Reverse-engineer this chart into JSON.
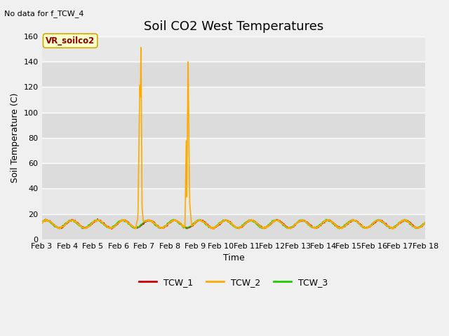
{
  "title": "Soil CO2 West Temperatures",
  "no_data_text": "No data for f_TCW_4",
  "ylabel": "Soil Temperature (C)",
  "xlabel": "Time",
  "annotation_text": "VR_soilco2",
  "ylim": [
    0,
    160
  ],
  "yticks": [
    0,
    20,
    40,
    60,
    80,
    100,
    120,
    140,
    160
  ],
  "xtick_labels": [
    "Feb 3",
    "Feb 4",
    "Feb 5",
    "Feb 6",
    "Feb 7",
    "Feb 8",
    "Feb 9",
    "Feb 10",
    "Feb 11",
    "Feb 12",
    "Feb 13",
    "Feb 14",
    "Feb 15",
    "Feb 16",
    "Feb 17",
    "Feb 18"
  ],
  "legend_labels": [
    "TCW_1",
    "TCW_2",
    "TCW_3"
  ],
  "legend_colors": [
    "#cc0000",
    "#ffaa00",
    "#22cc00"
  ],
  "fig_bg": "#f0f0f0",
  "ax_bg": "#e8e8e8",
  "grid_color": "#ffffff",
  "band_colors": [
    "#dcdcdc",
    "#e8e8e8"
  ],
  "title_fontsize": 13,
  "label_fontsize": 9,
  "tick_fontsize": 8,
  "n_days": 15,
  "n_per_day": 96,
  "seed": 42,
  "tcw1_base": 12,
  "tcw1_amp": 3,
  "tcw1_phase": 0.3,
  "tcw3_base": 12,
  "tcw3_amp": 3,
  "tcw3_phase": 0.6,
  "tcw2_base": 12,
  "tcw2_amp": 3,
  "tcw2_phase": 0.4,
  "spike1_segments": [
    {
      "t0": 3.7,
      "t1": 3.76,
      "v0": 12,
      "v1": 17
    },
    {
      "t0": 3.76,
      "t1": 3.82,
      "v0": 17,
      "v1": 107
    },
    {
      "t0": 3.82,
      "t1": 3.84,
      "v0": 107,
      "v1": 125
    },
    {
      "t0": 3.84,
      "t1": 3.85,
      "v0": 125,
      "v1": 108
    },
    {
      "t0": 3.85,
      "t1": 3.86,
      "v0": 108,
      "v1": 114
    },
    {
      "t0": 3.86,
      "t1": 3.88,
      "v0": 114,
      "v1": 156
    },
    {
      "t0": 3.88,
      "t1": 3.92,
      "v0": 156,
      "v1": 25
    },
    {
      "t0": 3.92,
      "t1": 3.97,
      "v0": 25,
      "v1": 14
    },
    {
      "t0": 3.97,
      "t1": 4.05,
      "v0": 14,
      "v1": 14
    }
  ],
  "spike2_segments": [
    {
      "t0": 5.6,
      "t1": 5.65,
      "v0": 13,
      "v1": 78
    },
    {
      "t0": 5.65,
      "t1": 5.67,
      "v0": 78,
      "v1": 32
    },
    {
      "t0": 5.67,
      "t1": 5.72,
      "v0": 32,
      "v1": 145
    },
    {
      "t0": 5.72,
      "t1": 5.78,
      "v0": 145,
      "v1": 30
    },
    {
      "t0": 5.78,
      "t1": 5.85,
      "v0": 30,
      "v1": 13
    }
  ]
}
